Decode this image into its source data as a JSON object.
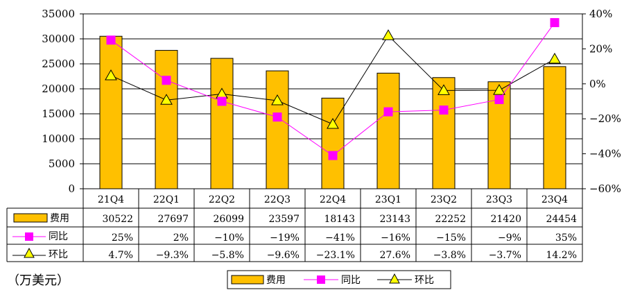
{
  "chart_data": {
    "type": "bar",
    "categories": [
      "21Q4",
      "22Q1",
      "22Q2",
      "22Q3",
      "22Q4",
      "23Q1",
      "23Q2",
      "23Q3",
      "23Q4"
    ],
    "ylim": [
      0,
      35000
    ],
    "y_ticks": [
      "0",
      "5000",
      "10000",
      "15000",
      "20000",
      "25000",
      "30000",
      "35000"
    ],
    "y2lim": [
      -60,
      40
    ],
    "y2_ticks": [
      "-60%",
      "-40%",
      "-20%",
      "0%",
      "20%",
      "40%"
    ],
    "grid": true,
    "unit_label": "（万美元）",
    "series": [
      {
        "name": "费用",
        "kind": "bar",
        "axis": "left",
        "color": "#FFC000",
        "values": [
          30522,
          27697,
          26099,
          23597,
          18143,
          23143,
          22252,
          21420,
          24454
        ],
        "labels": [
          "30522",
          "27697",
          "26099",
          "23597",
          "18143",
          "23143",
          "22252",
          "21420",
          "24454"
        ]
      },
      {
        "name": "同比",
        "kind": "line",
        "axis": "right",
        "color": "#FF00FF",
        "marker": "square",
        "values": [
          25,
          2,
          -10,
          -19,
          -41,
          -16,
          -15,
          -9,
          35
        ],
        "labels": [
          "25%",
          "2%",
          "−10%",
          "−19%",
          "−41%",
          "−16%",
          "−15%",
          "−9%",
          "35%"
        ]
      },
      {
        "name": "环比",
        "kind": "line",
        "axis": "right",
        "color": "#000000",
        "marker": "triangle",
        "values": [
          4.7,
          -9.3,
          -5.8,
          -9.6,
          -23.1,
          27.6,
          -3.8,
          -3.7,
          14.2
        ],
        "labels": [
          "4.7%",
          "−9.3%",
          "−5.8%",
          "−9.6%",
          "−23.1%",
          "27.6%",
          "−3.8%",
          "−3.7%",
          "14.2%"
        ]
      }
    ],
    "legend_position": "bottom"
  }
}
